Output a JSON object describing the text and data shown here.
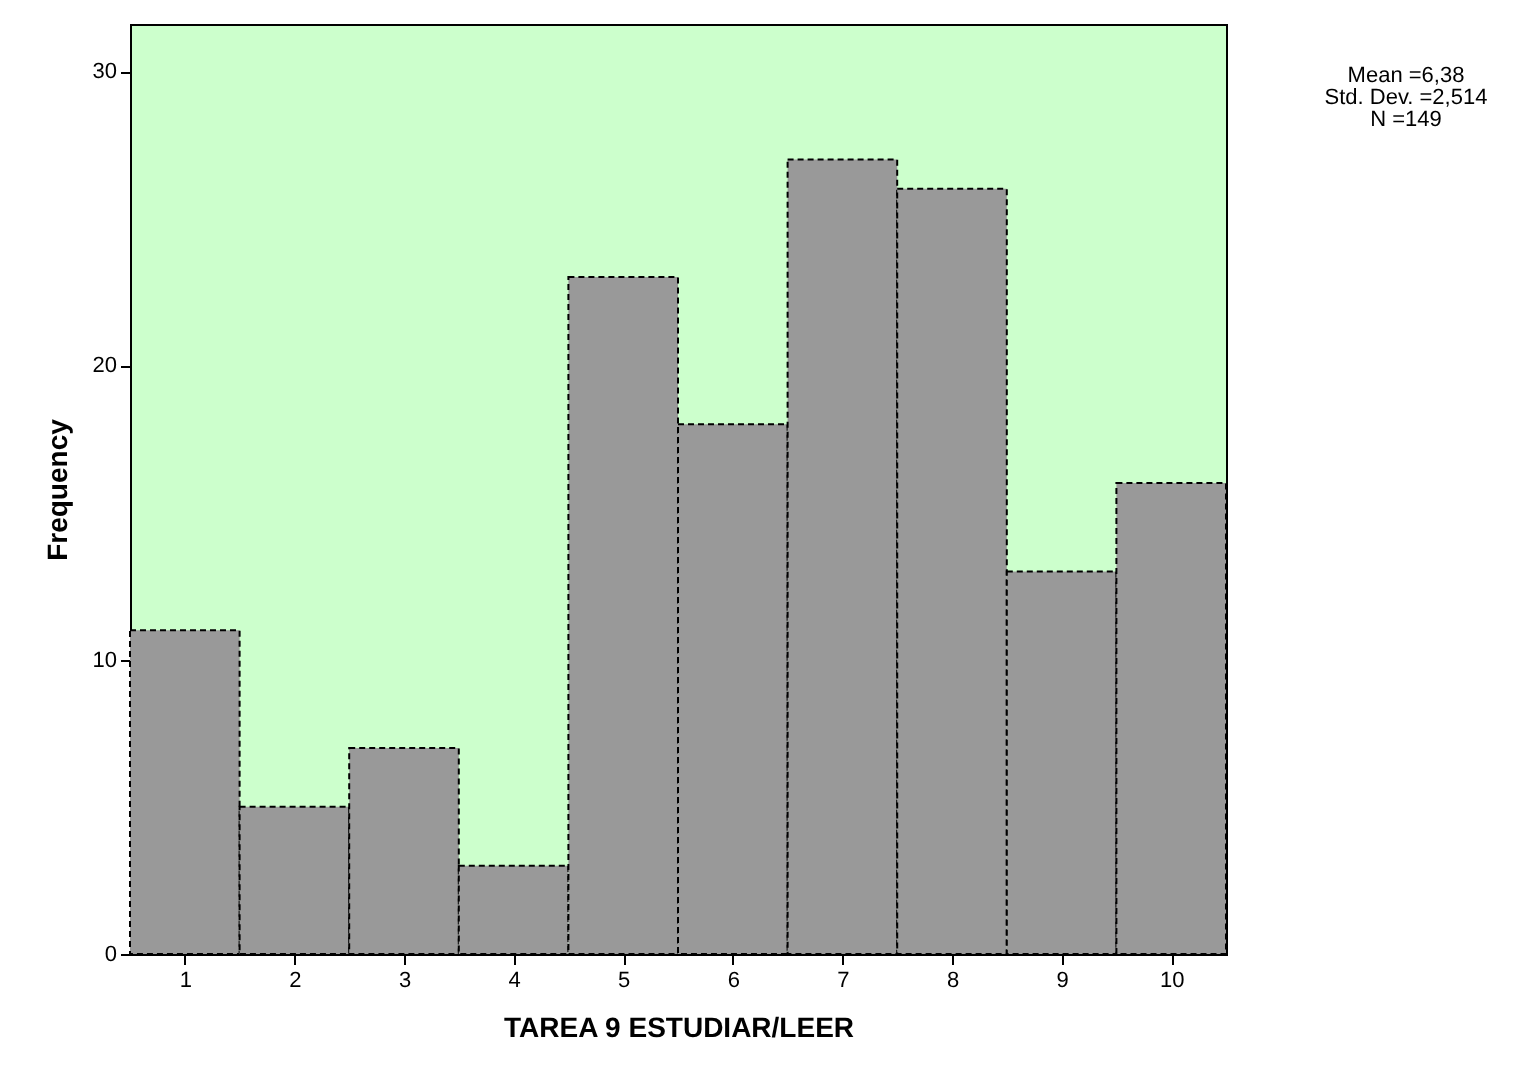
{
  "chart_data": {
    "type": "histogram",
    "xlabel": "TAREA 9 ESTUDIAR/LEER",
    "ylabel": "Frequency",
    "bins": [
      0.5,
      1.5,
      2.5,
      3.5,
      4.5,
      5.5,
      6.5,
      7.5,
      8.5,
      9.5,
      10.5
    ],
    "values": [
      11,
      5,
      7,
      3,
      23,
      18,
      27,
      26,
      13,
      16
    ],
    "color": "#999999",
    "line_style": "dashed",
    "xlim": [
      0.5,
      10.5
    ],
    "xticks": [
      1,
      2,
      3,
      4,
      5,
      6,
      7,
      8,
      9,
      10
    ],
    "ylim": [
      0,
      31.6
    ],
    "yticks": [
      0,
      10,
      20,
      30
    ],
    "grid": false,
    "annotations": [
      "Mean =6,38",
      "Std. Dev. =2,514",
      "N =149"
    ]
  }
}
